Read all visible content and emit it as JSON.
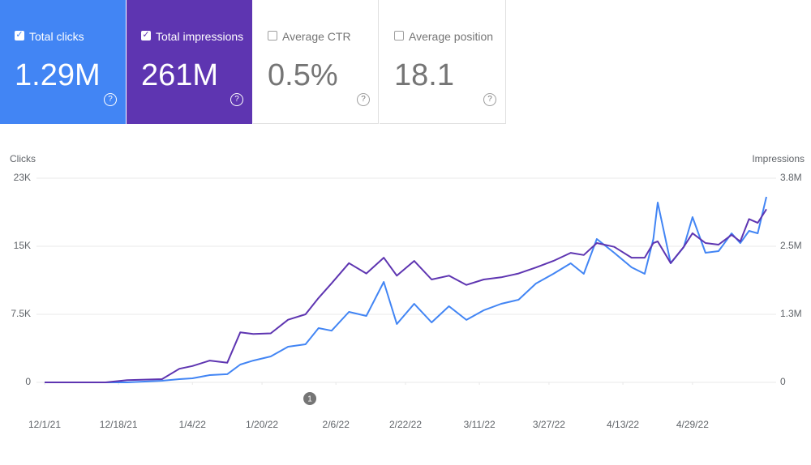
{
  "cards": [
    {
      "title": "Total clicks",
      "value": "1.29M",
      "checked": true,
      "color": "#4285f4"
    },
    {
      "title": "Total impressions",
      "value": "261M",
      "checked": true,
      "color": "#5e35b1"
    },
    {
      "title": "Average CTR",
      "value": "0.5%",
      "checked": false,
      "color": "#ffffff"
    },
    {
      "title": "Average position",
      "value": "18.1",
      "checked": false,
      "color": "#ffffff"
    }
  ],
  "chart_data": {
    "type": "line",
    "x": [
      "12/1/21",
      "12/15/21",
      "12/20/21",
      "12/28/21",
      "1/1/22",
      "1/4/22",
      "1/8/22",
      "1/12/22",
      "1/15/22",
      "1/18/22",
      "1/22/22",
      "1/26/22",
      "1/30/22",
      "2/2/22",
      "2/5/22",
      "2/9/22",
      "2/13/22",
      "2/17/22",
      "2/20/22",
      "2/24/22",
      "2/28/22",
      "3/4/22",
      "3/8/22",
      "3/12/22",
      "3/16/22",
      "3/20/22",
      "3/24/22",
      "3/28/22",
      "4/1/22",
      "4/4/22",
      "4/7/22",
      "4/11/22",
      "4/15/22",
      "4/18/22",
      "4/20/22",
      "4/21/22",
      "4/24/22",
      "4/27/22",
      "4/29/22",
      "5/2/22",
      "5/5/22",
      "5/8/22",
      "5/10/22",
      "5/12/22",
      "5/14/22",
      "5/16/22"
    ],
    "series": [
      {
        "name": "Clicks",
        "color": "#4285f4",
        "axis": "y",
        "values": [
          0,
          0,
          0,
          180,
          360,
          450,
          800,
          900,
          1960,
          2400,
          2860,
          3930,
          4200,
          5980,
          5700,
          7770,
          7320,
          11070,
          6430,
          8660,
          6610,
          8390,
          6880,
          7950,
          8660,
          9110,
          10890,
          11960,
          13125,
          11960,
          15800,
          14290,
          12680,
          11960,
          15800,
          19820,
          13125,
          14910,
          18210,
          14290,
          14460,
          16430,
          15350,
          16700,
          16430,
          20450
        ]
      },
      {
        "name": "Impressions",
        "color": "#5e35b1",
        "axis": "y2",
        "values": [
          0,
          0,
          40000,
          60000,
          250000,
          300000,
          400000,
          360000,
          920000,
          890000,
          900000,
          1150000,
          1250000,
          1550000,
          1820000,
          2190000,
          2000000,
          2290000,
          1960000,
          2230000,
          1890000,
          1960000,
          1790000,
          1890000,
          1930000,
          2000000,
          2110000,
          2230000,
          2380000,
          2340000,
          2560000,
          2490000,
          2290000,
          2290000,
          2560000,
          2590000,
          2190000,
          2490000,
          2740000,
          2560000,
          2530000,
          2710000,
          2590000,
          3000000,
          2930000,
          3180000
        ]
      }
    ],
    "xlim": [
      "12/1/21",
      "5/16/22"
    ],
    "xticks": [
      "12/1/21",
      "12/18/21",
      "1/4/22",
      "1/20/22",
      "2/6/22",
      "2/22/22",
      "3/11/22",
      "3/27/22",
      "4/13/22",
      "4/29/22"
    ],
    "ylim": [
      0,
      22500
    ],
    "yticks": [
      0,
      {
        "value": 7500,
        "label": "7.5K"
      },
      {
        "value": 15000,
        "label": "15K"
      },
      {
        "value": 22500,
        "label": "23K"
      }
    ],
    "y2lim": [
      0,
      3750000
    ],
    "y2ticks": [
      0,
      {
        "value": 1250000,
        "label": "1.3M"
      },
      {
        "value": 2500000,
        "label": "2.5M"
      },
      {
        "value": 3750000,
        "label": "3.8M"
      }
    ],
    "grid": true,
    "annotations": [
      {
        "x": "1/31/22",
        "label": "1"
      }
    ]
  }
}
